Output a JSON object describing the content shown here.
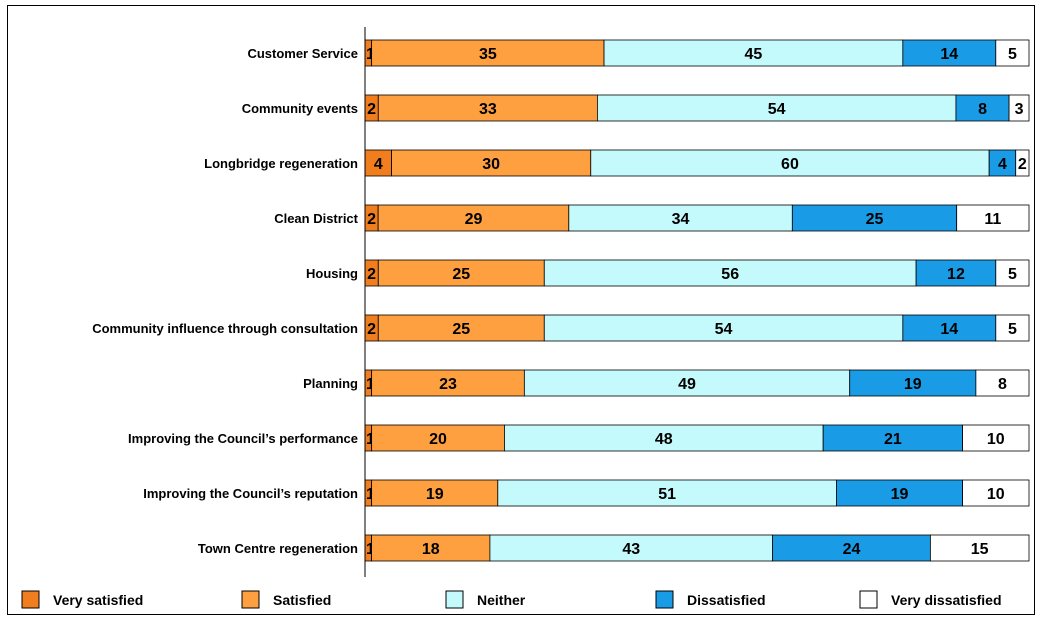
{
  "chart_data": {
    "type": "bar",
    "orientation": "horizontal",
    "stacked": true,
    "percent_stacked": true,
    "categories": [
      "Customer Service",
      "Community events",
      "Longbridge regeneration",
      "Clean District",
      "Housing",
      "Community influence through consultation",
      "Planning",
      "Improving the Council’s performance",
      "Improving the Council’s reputation",
      "Town Centre regeneration"
    ],
    "series": [
      {
        "name": "Very satisfied",
        "color": "#F07E1E",
        "values": [
          1,
          2,
          4,
          2,
          2,
          2,
          1,
          1,
          1,
          1
        ]
      },
      {
        "name": "Satisfied",
        "color": "#FFA040",
        "values": [
          35,
          33,
          30,
          29,
          25,
          25,
          23,
          20,
          19,
          18
        ]
      },
      {
        "name": "Neither",
        "color": "#C4FAFC",
        "values": [
          45,
          54,
          60,
          34,
          56,
          54,
          49,
          48,
          51,
          43
        ]
      },
      {
        "name": "Dissatisfied",
        "color": "#1A9BE6",
        "values": [
          14,
          8,
          4,
          25,
          12,
          14,
          19,
          21,
          19,
          24
        ]
      },
      {
        "name": "Very dissatisfied",
        "color": "#FFFFFF",
        "values": [
          5,
          3,
          2,
          11,
          5,
          5,
          8,
          10,
          10,
          15
        ]
      }
    ],
    "legend_position": "bottom",
    "grid": false
  }
}
